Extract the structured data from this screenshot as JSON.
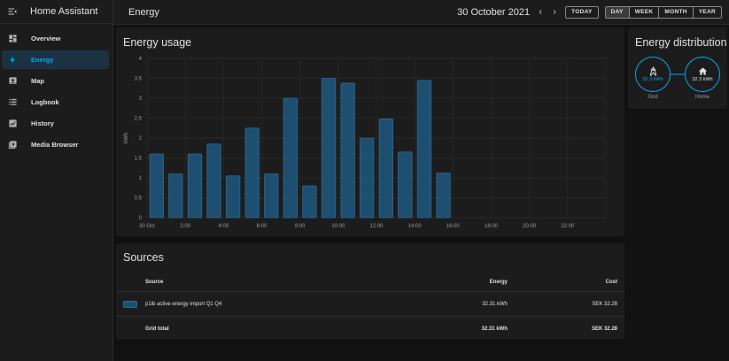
{
  "app": {
    "title": "Home Assistant"
  },
  "sidebar": {
    "items": [
      {
        "label": "Overview",
        "icon": "dashboard-icon"
      },
      {
        "label": "Energy",
        "icon": "lightning-icon",
        "active": true
      },
      {
        "label": "Map",
        "icon": "map-icon"
      },
      {
        "label": "Logbook",
        "icon": "logbook-icon"
      },
      {
        "label": "History",
        "icon": "history-icon"
      },
      {
        "label": "Media Browser",
        "icon": "media-browser-icon"
      }
    ]
  },
  "header": {
    "title": "Energy",
    "date": "30 October 2021",
    "prev": "‹",
    "next": "›",
    "today": "TODAY",
    "periods": [
      "DAY",
      "WEEK",
      "MONTH",
      "YEAR"
    ],
    "active_period": "DAY"
  },
  "colors": {
    "accent": "#03a9f4",
    "bar_fill": "#1f4f70",
    "bar_stroke": "#2b6a92"
  },
  "usage": {
    "title": "Energy usage"
  },
  "chart_data": {
    "type": "bar",
    "ylabel": "kWh",
    "ylim": [
      0,
      4
    ],
    "yticks": [
      "0",
      "0.5",
      "1",
      "1.5",
      "2",
      "2.5",
      "3",
      "3.5",
      "4"
    ],
    "xtick_labels": [
      "30 Oct",
      "2:00",
      "4:00",
      "6:00",
      "8:00",
      "10:00",
      "12:00",
      "14:00",
      "16:00",
      "18:00",
      "20:00",
      "22:00"
    ],
    "hours": 24,
    "values": [
      1.6,
      1.1,
      1.6,
      1.85,
      1.05,
      2.25,
      1.1,
      3.0,
      0.8,
      3.5,
      3.38,
      2.0,
      2.48,
      1.65,
      3.45,
      1.12
    ],
    "grid": true
  },
  "distribution": {
    "title": "Energy distribution",
    "grid": {
      "label": "Grid",
      "value": "32.3 kWh",
      "icon": "transmission-tower-icon"
    },
    "home": {
      "label": "Home",
      "value": "32.3 kWh",
      "icon": "home-icon"
    }
  },
  "sources": {
    "title": "Sources",
    "headers": {
      "source": "Source",
      "energy": "Energy",
      "cost": "Cost"
    },
    "rows": [
      {
        "source": "p1ib active energy import Q1 Q4",
        "energy": "32.31 kWh",
        "cost": "SEK 32.28"
      }
    ],
    "total": {
      "label": "Grid total",
      "energy": "32.31 kWh",
      "cost": "SEK 32.28"
    }
  }
}
